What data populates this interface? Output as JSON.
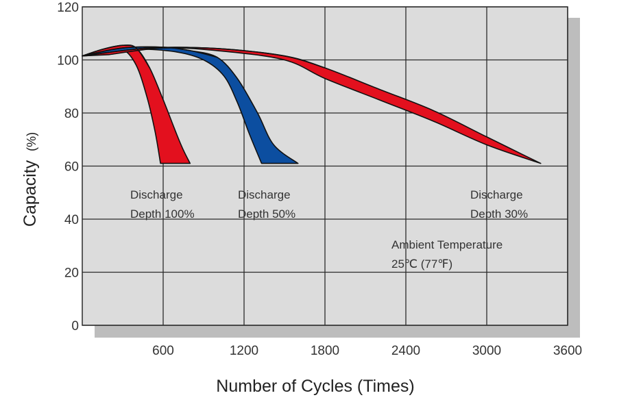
{
  "chart_data": {
    "type": "area",
    "xlabel": "Number of Cycles (Times)",
    "ylabel": "Capacity",
    "ylabel_unit": "(%)",
    "xlim": [
      0,
      3600
    ],
    "ylim": [
      0,
      120
    ],
    "x_ticks": [
      "600",
      "1200",
      "1800",
      "2400",
      "3000",
      "3600"
    ],
    "y_ticks": [
      "0",
      "20",
      "40",
      "60",
      "80",
      "100",
      "120"
    ],
    "grid": true,
    "series": [
      {
        "key": "dod100",
        "color": "#e3101e",
        "upper": [
          [
            0,
            101.5
          ],
          [
            150,
            104
          ],
          [
            300,
            105.5
          ],
          [
            400,
            104.5
          ],
          [
            500,
            97
          ],
          [
            600,
            85
          ],
          [
            700,
            72
          ],
          [
            750,
            66
          ],
          [
            800,
            61
          ]
        ],
        "lower": [
          [
            200,
            103
          ],
          [
            300,
            104
          ],
          [
            400,
            98
          ],
          [
            480,
            86
          ],
          [
            540,
            73
          ],
          [
            580,
            61
          ]
        ]
      },
      {
        "key": "dod50",
        "color": "#0c4ea0",
        "upper": [
          [
            0,
            101.5
          ],
          [
            300,
            104.5
          ],
          [
            600,
            104.8
          ],
          [
            800,
            103.5
          ],
          [
            1000,
            101
          ],
          [
            1150,
            93
          ],
          [
            1300,
            80
          ],
          [
            1420,
            68
          ],
          [
            1600,
            61
          ]
        ],
        "lower": [
          [
            150,
            102
          ],
          [
            400,
            104
          ],
          [
            700,
            103
          ],
          [
            900,
            100
          ],
          [
            1050,
            94
          ],
          [
            1150,
            84
          ],
          [
            1240,
            72
          ],
          [
            1330,
            61
          ]
        ]
      },
      {
        "key": "dod30",
        "color": "#e3101e",
        "upper": [
          [
            0,
            101.5
          ],
          [
            500,
            104.5
          ],
          [
            1000,
            104.3
          ],
          [
            1500,
            101.5
          ],
          [
            1800,
            97
          ],
          [
            2200,
            89
          ],
          [
            2600,
            81
          ],
          [
            3000,
            71
          ],
          [
            3400,
            61
          ]
        ],
        "lower": [
          [
            200,
            102
          ],
          [
            600,
            104.5
          ],
          [
            1000,
            103.5
          ],
          [
            1500,
            100
          ],
          [
            1800,
            93
          ],
          [
            2200,
            85
          ],
          [
            2600,
            77
          ],
          [
            3000,
            68
          ],
          [
            3400,
            61
          ]
        ]
      }
    ],
    "annotations": [
      {
        "key": "dod100",
        "line1": "Discharge",
        "line2": "Depth 100%"
      },
      {
        "key": "dod50",
        "line1": "Discharge",
        "line2": "Depth 50%"
      },
      {
        "key": "dod30",
        "line1": "Discharge",
        "line2": "Depth 30%"
      },
      {
        "key": "ambient",
        "line1": "Ambient Temperature",
        "line2": "25℃  (77℉)"
      }
    ]
  }
}
